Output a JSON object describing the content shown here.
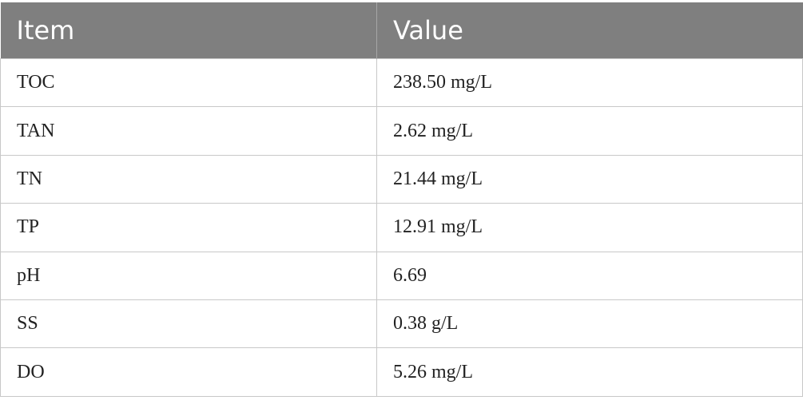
{
  "table": {
    "header": [
      "Item",
      "Value"
    ],
    "rows": [
      [
        "TOC",
        "238.50 mg/L"
      ],
      [
        "TAN",
        "2.62 mg/L"
      ],
      [
        "TN",
        "21.44 mg/L"
      ],
      [
        "TP",
        "12.91 mg/L"
      ],
      [
        "pH",
        "6.69"
      ],
      [
        "SS",
        "0.38 g/L"
      ],
      [
        "DO",
        "5.26 mg/L"
      ]
    ]
  }
}
